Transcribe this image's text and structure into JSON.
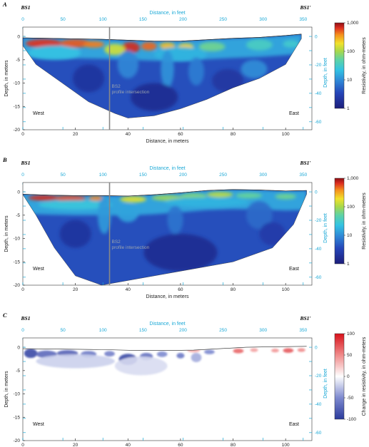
{
  "colors": {
    "blue_axis": "#1aa8d6",
    "line": "#888888"
  },
  "chart_data": [
    {
      "type": "heatmap",
      "panel": "A",
      "section_labels": {
        "left": "BS1",
        "right": "BS1'"
      },
      "xlabel": "Distance, in meters",
      "x2label": "Distance, in feet",
      "ylabel": "Depth, in meters",
      "y2label": "Depth, in feet",
      "xlim": [
        0,
        110
      ],
      "ylim": [
        -20,
        2
      ],
      "x_ticks": [
        "0",
        "20",
        "40",
        "60",
        "80",
        "100"
      ],
      "x2_ticks": [
        "0",
        "50",
        "100",
        "150",
        "200",
        "250",
        "300",
        "350"
      ],
      "y_ticks": [
        "0",
        "-5",
        "-10",
        "-15",
        "-20"
      ],
      "y2_ticks": [
        "0",
        "-20",
        "-40",
        "-60"
      ],
      "annotations": {
        "west": "West",
        "east": "East",
        "intersection_line1": "BS2",
        "intersection_line2": "profile intersection",
        "intersection_x": 33
      },
      "colorbar": {
        "label": "Resistivity, in ohm-meters",
        "scale": "log",
        "ticks": [
          "1,000",
          "100",
          "10",
          "1"
        ]
      },
      "surface": [
        [
          0,
          -0.3
        ],
        [
          10,
          -0.4
        ],
        [
          20,
          -0.5
        ],
        [
          30,
          -0.6
        ],
        [
          40,
          -0.8
        ],
        [
          50,
          -1.0
        ],
        [
          60,
          -1.0
        ],
        [
          70,
          -0.7
        ],
        [
          80,
          -0.4
        ],
        [
          90,
          -0.2
        ],
        [
          100,
          0.2
        ],
        [
          106,
          0.5
        ]
      ],
      "bottom": [
        [
          0,
          -2
        ],
        [
          5,
          -6
        ],
        [
          15,
          -10
        ],
        [
          25,
          -14
        ],
        [
          35,
          -16.5
        ],
        [
          40,
          -17.5
        ],
        [
          50,
          -17
        ],
        [
          60,
          -15.5
        ],
        [
          70,
          -13.5
        ],
        [
          80,
          -11
        ],
        [
          90,
          -9
        ],
        [
          100,
          -6
        ],
        [
          106,
          -0.5
        ]
      ],
      "features": [
        {
          "x": 8,
          "z": -1.5,
          "rx": 7,
          "rz": 0.9,
          "v": 650
        },
        {
          "x": 20,
          "z": -1.5,
          "rx": 6,
          "rz": 0.9,
          "v": 520
        },
        {
          "x": 27,
          "z": -1.7,
          "rx": 4,
          "rz": 0.7,
          "v": 420
        },
        {
          "x": 41,
          "z": -2.4,
          "rx": 3.5,
          "rz": 1.2,
          "v": 700
        },
        {
          "x": 48,
          "z": -2.1,
          "rx": 3,
          "rz": 0.9,
          "v": 480
        },
        {
          "x": 55,
          "z": -2.0,
          "rx": 3,
          "rz": 0.7,
          "v": 260
        },
        {
          "x": 62,
          "z": -2.2,
          "rx": 3,
          "rz": 0.7,
          "v": 220
        },
        {
          "x": 35,
          "z": -2.8,
          "rx": 4,
          "rz": 1.2,
          "v": 140
        },
        {
          "x": 72,
          "z": -2.2,
          "rx": 5,
          "rz": 1.0,
          "v": 60
        },
        {
          "x": 90,
          "z": -1.8,
          "rx": 5,
          "rz": 1.2,
          "v": 35
        },
        {
          "x": 102,
          "z": -1.6,
          "rx": 3,
          "rz": 0.8,
          "v": 30
        },
        {
          "x": 12,
          "z": -3.5,
          "rx": 10,
          "rz": 1.5,
          "v": 22
        },
        {
          "x": 60,
          "z": -3.8,
          "rx": 10,
          "rz": 1.5,
          "v": 18
        },
        {
          "x": 40,
          "z": -6,
          "rx": 4,
          "rz": 3,
          "v": 9
        },
        {
          "x": 55,
          "z": -7,
          "rx": 2.5,
          "rz": 4,
          "v": 11
        },
        {
          "x": 66,
          "z": -7.5,
          "rx": 3,
          "rz": 3,
          "v": 8
        },
        {
          "x": 88,
          "z": -7,
          "rx": 5,
          "rz": 2,
          "v": 10
        },
        {
          "x": 25,
          "z": -9,
          "rx": 6,
          "rz": 3,
          "v": 2
        },
        {
          "x": 50,
          "z": -13,
          "rx": 9,
          "rz": 3,
          "v": 1.6
        },
        {
          "x": 78,
          "z": -9.5,
          "rx": 6,
          "rz": 2.5,
          "v": 2.2
        }
      ]
    },
    {
      "type": "heatmap",
      "panel": "B",
      "section_labels": {
        "left": "BS1",
        "right": "BS1'"
      },
      "xlabel": "Distance, in meters",
      "x2label": "Distance, in feet",
      "ylabel": "Depth, in meters",
      "y2label": "Depth, in feet",
      "xlim": [
        0,
        110
      ],
      "ylim": [
        -20,
        2
      ],
      "x_ticks": [
        "0",
        "20",
        "40",
        "60",
        "80",
        "100"
      ],
      "x2_ticks": [
        "0",
        "50",
        "100",
        "150",
        "200",
        "250",
        "300",
        "350"
      ],
      "y_ticks": [
        "0",
        "-5",
        "-10",
        "-15",
        "-20"
      ],
      "y2_ticks": [
        "0",
        "-20",
        "-40",
        "-60"
      ],
      "annotations": {
        "west": "West",
        "east": "East",
        "intersection_line1": "BS2",
        "intersection_line2": "profile intersection",
        "intersection_x": 33
      },
      "colorbar": {
        "label": "Resistivity, in ohm-meters",
        "scale": "log",
        "ticks": [
          "1,000",
          "100",
          "10",
          "1"
        ]
      },
      "surface": [
        [
          0,
          -0.5
        ],
        [
          10,
          -0.7
        ],
        [
          20,
          -0.8
        ],
        [
          30,
          -0.8
        ],
        [
          40,
          -0.9
        ],
        [
          50,
          -0.6
        ],
        [
          60,
          -0.2
        ],
        [
          70,
          0.3
        ],
        [
          80,
          0.5
        ],
        [
          90,
          0.4
        ],
        [
          100,
          0.2
        ],
        [
          108,
          0.3
        ]
      ],
      "bottom": [
        [
          0,
          -0.6
        ],
        [
          5,
          -5
        ],
        [
          12,
          -12
        ],
        [
          20,
          -18
        ],
        [
          30,
          -20
        ],
        [
          40,
          -19
        ],
        [
          60,
          -17
        ],
        [
          80,
          -15
        ],
        [
          95,
          -12
        ],
        [
          103,
          -7
        ],
        [
          108,
          -0.5
        ]
      ],
      "features": [
        {
          "x": 8,
          "z": -1.3,
          "rx": 6,
          "rz": 0.6,
          "v": 700
        },
        {
          "x": 18,
          "z": -1.4,
          "rx": 6,
          "rz": 0.6,
          "v": 560
        },
        {
          "x": 28,
          "z": -1.4,
          "rx": 3,
          "rz": 0.5,
          "v": 400
        },
        {
          "x": 42,
          "z": -1.6,
          "rx": 5,
          "rz": 0.7,
          "v": 160
        },
        {
          "x": 55,
          "z": -1.3,
          "rx": 6,
          "rz": 0.6,
          "v": 90
        },
        {
          "x": 65,
          "z": -0.9,
          "rx": 5,
          "rz": 0.6,
          "v": 70
        },
        {
          "x": 75,
          "z": -0.6,
          "rx": 5,
          "rz": 0.6,
          "v": 120
        },
        {
          "x": 86,
          "z": -0.8,
          "rx": 5,
          "rz": 0.6,
          "v": 55
        },
        {
          "x": 100,
          "z": -1.0,
          "rx": 4,
          "rz": 0.6,
          "v": 60
        },
        {
          "x": 20,
          "z": -2.8,
          "rx": 14,
          "rz": 1.0,
          "v": 25
        },
        {
          "x": 70,
          "z": -2.2,
          "rx": 16,
          "rz": 1.0,
          "v": 18
        },
        {
          "x": 31,
          "z": -5,
          "rx": 2.5,
          "rz": 4,
          "v": 12
        },
        {
          "x": 40,
          "z": -4.5,
          "rx": 4,
          "rz": 2,
          "v": 14
        },
        {
          "x": 58,
          "z": -6,
          "rx": 3,
          "rz": 3,
          "v": 7
        },
        {
          "x": 90,
          "z": -5,
          "rx": 5,
          "rz": 3,
          "v": 6
        },
        {
          "x": 20,
          "z": -9,
          "rx": 6,
          "rz": 3,
          "v": 2
        },
        {
          "x": 60,
          "z": -13,
          "rx": 14,
          "rz": 4,
          "v": 1.6
        },
        {
          "x": 95,
          "z": -9,
          "rx": 5,
          "rz": 2.5,
          "v": 2.5
        }
      ]
    },
    {
      "type": "heatmap",
      "panel": "C",
      "section_labels": {
        "left": "BS1",
        "right": "BS1'"
      },
      "xlabel": "Distance, in meters",
      "x2label": "Distance, in feet",
      "ylabel": "Depth, in meters",
      "y2label": "Depth, in feet",
      "xlim": [
        0,
        110
      ],
      "ylim": [
        -20,
        2
      ],
      "x_ticks": [
        "0",
        "20",
        "40",
        "60",
        "80",
        "100"
      ],
      "x2_ticks": [
        "0",
        "50",
        "100",
        "150",
        "200",
        "250",
        "300",
        "350"
      ],
      "y_ticks": [
        "0",
        "-5",
        "-10",
        "-15",
        "-20"
      ],
      "y2_ticks": [
        "0",
        "-20",
        "-40",
        "-60"
      ],
      "annotations": {
        "west": "West",
        "east": "East"
      },
      "colorbar": {
        "label": "Change in resistivity, in ohm-meters",
        "scale": "linear",
        "ticks": [
          "100",
          "50",
          "0",
          "-50",
          "-100"
        ]
      },
      "surface": [
        [
          0,
          -0.3
        ],
        [
          15,
          -0.4
        ],
        [
          30,
          -0.5
        ],
        [
          45,
          -0.7
        ],
        [
          55,
          -0.7
        ],
        [
          65,
          -0.6
        ],
        [
          75,
          -0.3
        ],
        [
          85,
          0.0
        ],
        [
          95,
          0.1
        ],
        [
          108,
          0.2
        ]
      ],
      "features": [
        {
          "x": 3,
          "z": -1.3,
          "rx": 2.5,
          "rz": 1.0,
          "v": -90
        },
        {
          "x": 9,
          "z": -1.5,
          "rx": 4,
          "rz": 0.8,
          "v": -70
        },
        {
          "x": 17,
          "z": -1.3,
          "rx": 4,
          "rz": 0.7,
          "v": -75
        },
        {
          "x": 25,
          "z": -1.5,
          "rx": 3,
          "rz": 0.7,
          "v": -60
        },
        {
          "x": 33,
          "z": -1.4,
          "rx": 2,
          "rz": 0.6,
          "v": -55
        },
        {
          "x": 40,
          "z": -2.6,
          "rx": 3.5,
          "rz": 1.2,
          "v": -90
        },
        {
          "x": 47,
          "z": -2.0,
          "rx": 2.5,
          "rz": 0.8,
          "v": -65
        },
        {
          "x": 53,
          "z": -1.5,
          "rx": 2,
          "rz": 0.6,
          "v": -50
        },
        {
          "x": 60,
          "z": -1.8,
          "rx": 1.5,
          "rz": 0.6,
          "v": -60
        },
        {
          "x": 66,
          "z": -2.2,
          "rx": 2,
          "rz": 1.0,
          "v": -35
        },
        {
          "x": 71,
          "z": -1.0,
          "rx": 2,
          "rz": 0.5,
          "v": -50
        },
        {
          "x": 65,
          "z": -0.6,
          "rx": 2.5,
          "rz": 0.5,
          "v": 35
        },
        {
          "x": 82,
          "z": -0.8,
          "rx": 2,
          "rz": 0.5,
          "v": 65
        },
        {
          "x": 88,
          "z": -0.6,
          "rx": 1.5,
          "rz": 0.4,
          "v": 40
        },
        {
          "x": 96,
          "z": -0.7,
          "rx": 1.5,
          "rz": 0.4,
          "v": 45
        },
        {
          "x": 101,
          "z": -0.7,
          "rx": 2,
          "rz": 0.5,
          "v": 70
        },
        {
          "x": 106,
          "z": -0.6,
          "rx": 1.5,
          "rz": 0.4,
          "v": 50
        },
        {
          "x": 20,
          "z": -3,
          "rx": 15,
          "rz": 1.5,
          "v": -20
        },
        {
          "x": 45,
          "z": -4,
          "rx": 10,
          "rz": 2,
          "v": -15
        }
      ]
    }
  ]
}
